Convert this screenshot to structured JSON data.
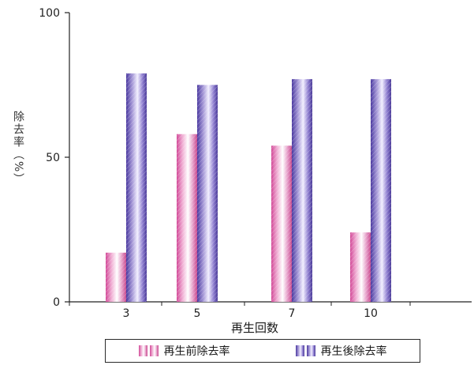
{
  "chart_data": {
    "type": "bar",
    "categories": [
      "3",
      "5",
      "7",
      "10"
    ],
    "series": [
      {
        "name": "再生前除去率",
        "values": [
          17,
          58,
          54,
          24
        ],
        "color": "#cc4d99"
      },
      {
        "name": "再生後除去率",
        "values": [
          79,
          75,
          77,
          77
        ],
        "color": "#5a4aa8"
      }
    ],
    "xlabel": "再生回数",
    "ylabel": "除去率（%）",
    "ylim": [
      0,
      100
    ],
    "yticks": [
      0,
      50,
      100
    ],
    "grid": false,
    "legend_position": "bottom"
  }
}
